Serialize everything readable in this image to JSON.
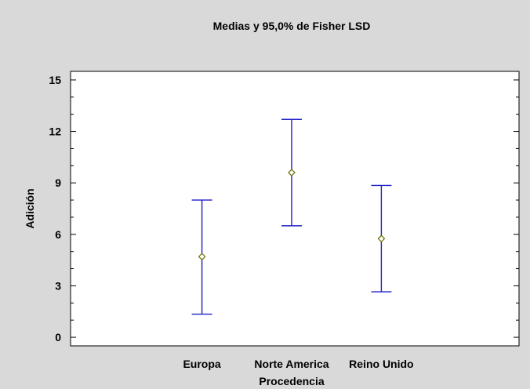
{
  "chart_data": {
    "type": "errorbar",
    "title": "Medias y 95,0% de Fisher LSD",
    "xlabel": "Procedencia",
    "ylabel": "Adición",
    "ylim": [
      -0.5,
      15.5
    ],
    "yticks": [
      0,
      3,
      6,
      9,
      12,
      15
    ],
    "grid": false,
    "categories": [
      "Europa",
      "Norte America",
      "Reino Unido"
    ],
    "means": [
      4.7,
      9.6,
      5.75
    ],
    "lower": [
      1.35,
      6.5,
      2.65
    ],
    "upper": [
      8.0,
      12.7,
      8.85
    ],
    "colors": {
      "background": "#d9d9d9",
      "plot_area": "#ffffff",
      "interval": "#1f1fc8",
      "mean_marker": "#6b6b00"
    }
  }
}
